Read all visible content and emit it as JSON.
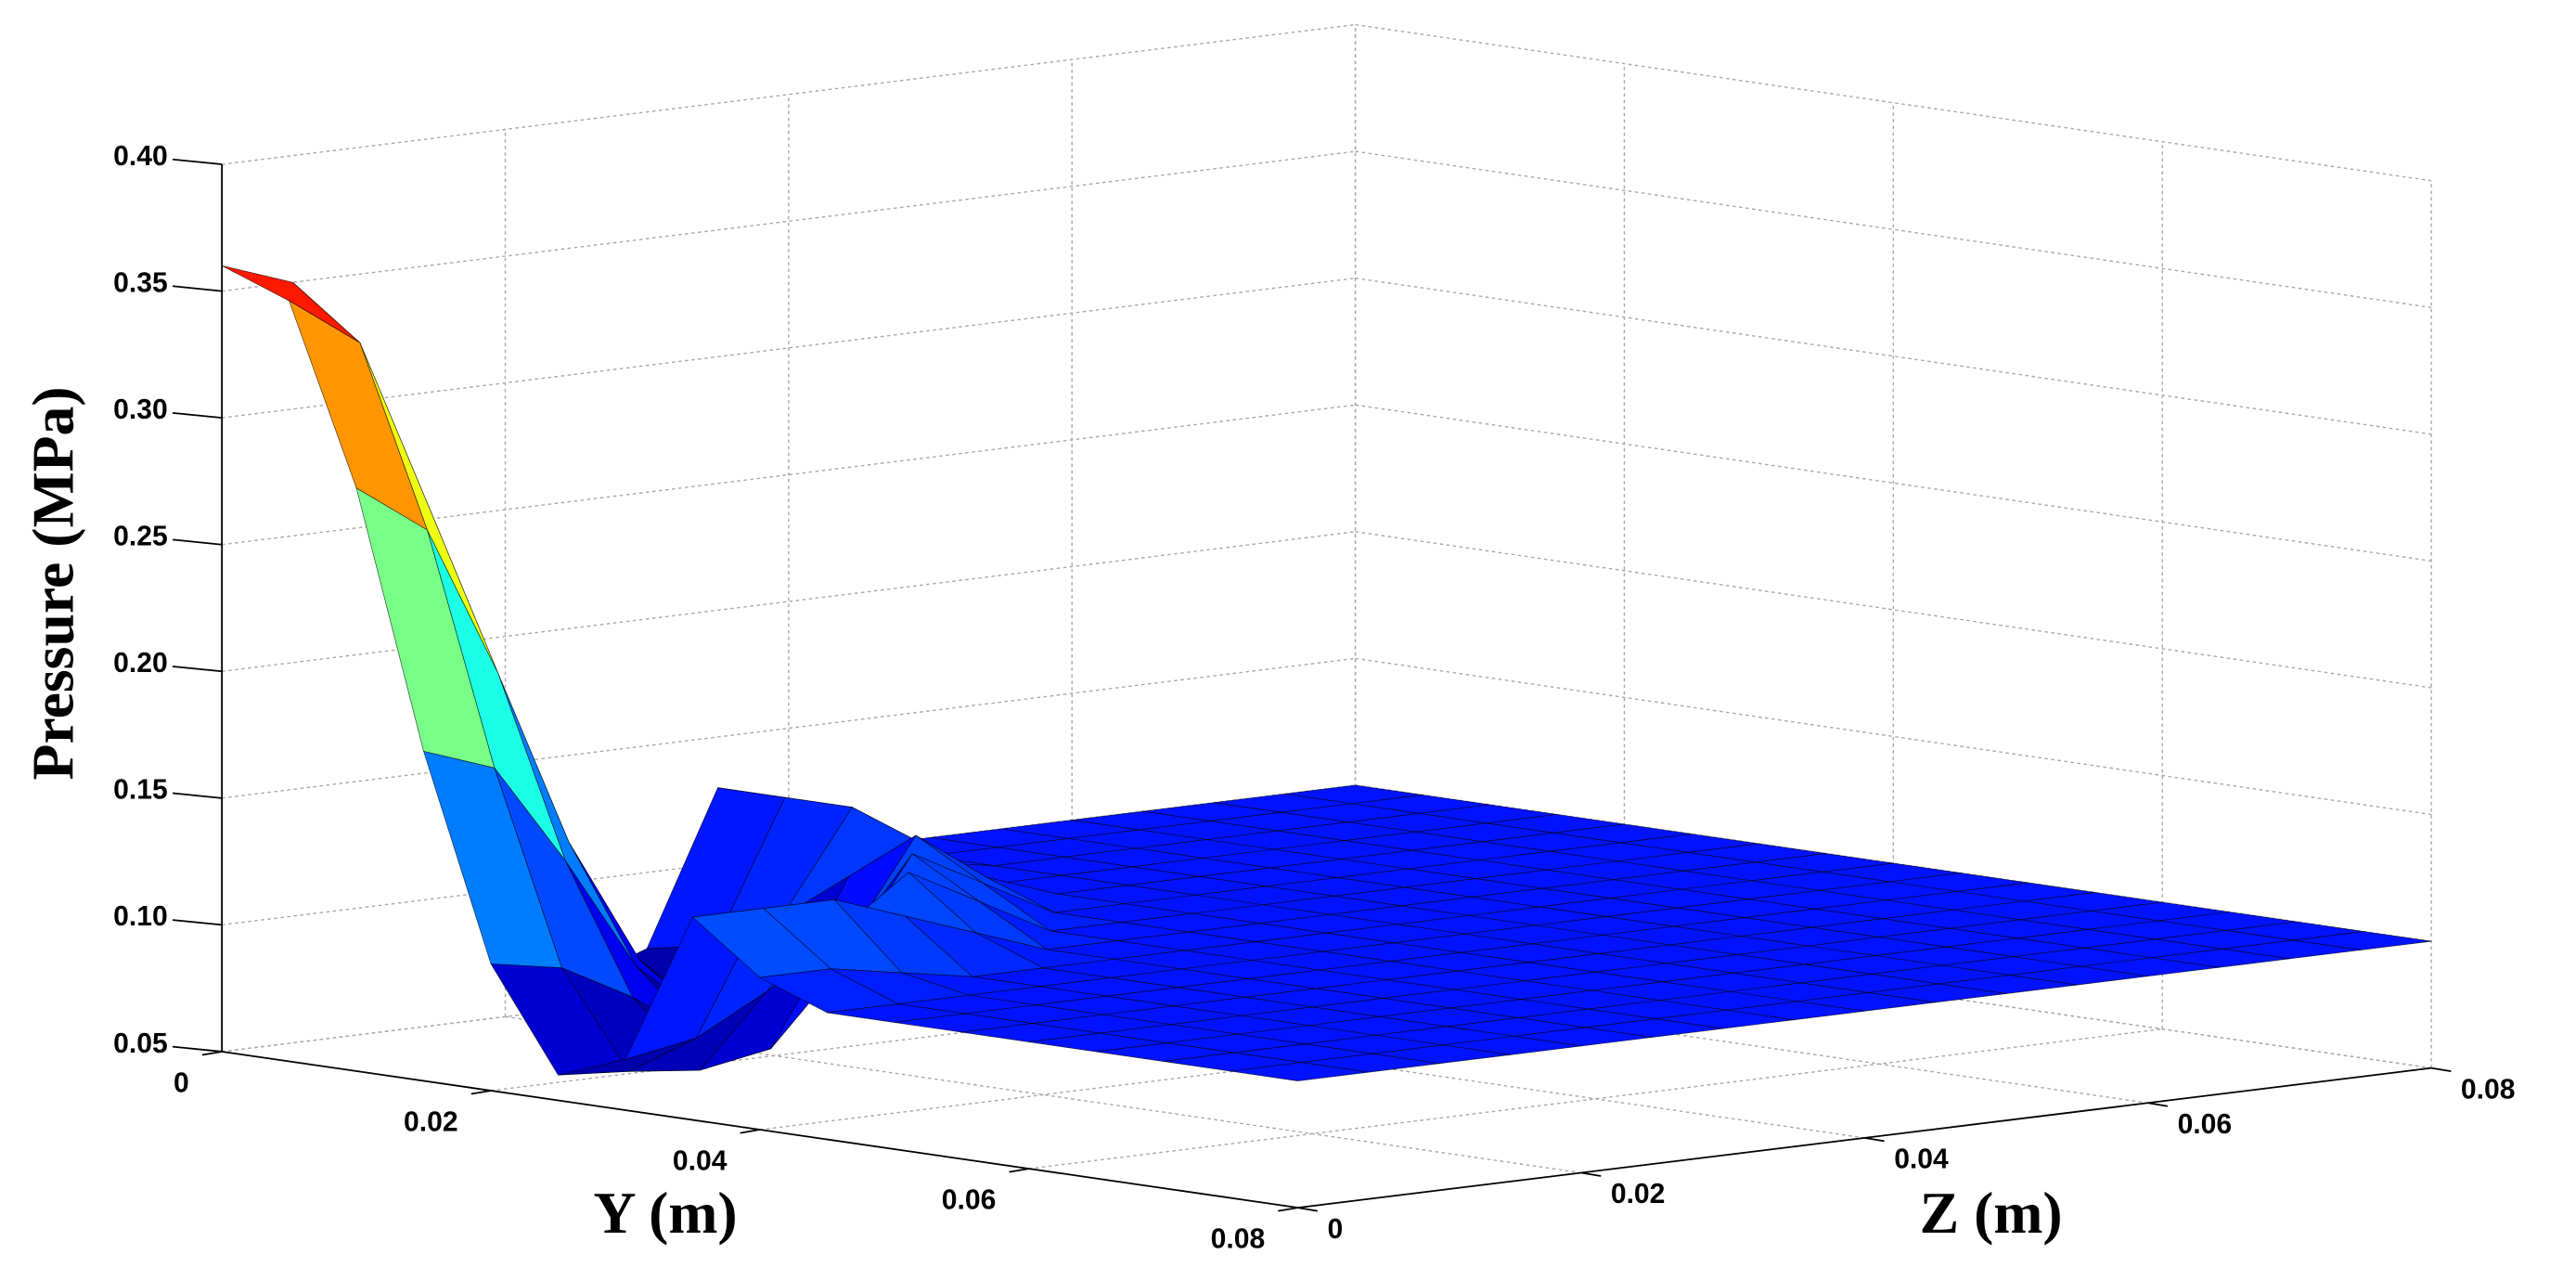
{
  "chart_data": {
    "type": "surface",
    "ylabel": "Y (m)",
    "zlabel": "Z (m)",
    "vlabel": "Pressure (MPa)",
    "colormap": "jet",
    "grid": true,
    "ylim": [
      0,
      0.08
    ],
    "yticks": [
      0,
      0.02,
      0.04,
      0.06,
      0.08
    ],
    "zlim": [
      0,
      0.08
    ],
    "zticks": [
      0,
      0.02,
      0.04,
      0.06,
      0.08
    ],
    "vlim": [
      0.05,
      0.4
    ],
    "vticks": [
      0.05,
      {
        "value": 0.1,
        "label": "0.10"
      },
      0.15,
      {
        "value": 0.2,
        "label": "0.20"
      },
      0.25,
      {
        "value": 0.3,
        "label": "0.30"
      },
      0.35,
      {
        "value": 0.4,
        "label": "0.40"
      }
    ],
    "y": [
      0,
      0.005,
      0.01,
      0.015,
      0.02,
      0.025,
      0.03,
      0.035,
      0.04,
      0.045,
      0.05,
      0.055,
      0.06,
      0.065,
      0.07,
      0.075,
      0.08
    ],
    "z": [
      0,
      0.005,
      0.01,
      0.015,
      0.02,
      0.025,
      0.03,
      0.035,
      0.04,
      0.045,
      0.05,
      0.055,
      0.06,
      0.065,
      0.07,
      0.075,
      0.08
    ],
    "values": [
      [
        0.36,
        0.35,
        0.28,
        0.18,
        0.1,
        0.06,
        0.07,
        0.13,
        0.11,
        0.1,
        0.1,
        0.1,
        0.1,
        0.1,
        0.1,
        0.1,
        0.1
      ],
      [
        0.35,
        0.33,
        0.26,
        0.17,
        0.095,
        0.058,
        0.075,
        0.13,
        0.11,
        0.1,
        0.1,
        0.1,
        0.1,
        0.1,
        0.1,
        0.1,
        0.1
      ],
      [
        0.28,
        0.26,
        0.2,
        0.13,
        0.08,
        0.055,
        0.09,
        0.13,
        0.105,
        0.1,
        0.1,
        0.1,
        0.1,
        0.1,
        0.1,
        0.1,
        0.1
      ],
      [
        0.18,
        0.17,
        0.13,
        0.085,
        0.06,
        0.06,
        0.11,
        0.12,
        0.1,
        0.1,
        0.1,
        0.1,
        0.1,
        0.1,
        0.1,
        0.1,
        0.1
      ],
      [
        0.1,
        0.095,
        0.08,
        0.06,
        0.055,
        0.09,
        0.13,
        0.11,
        0.1,
        0.1,
        0.1,
        0.1,
        0.1,
        0.1,
        0.1,
        0.1,
        0.1
      ],
      [
        0.06,
        0.058,
        0.055,
        0.06,
        0.09,
        0.13,
        0.115,
        0.1,
        0.1,
        0.1,
        0.1,
        0.1,
        0.1,
        0.1,
        0.1,
        0.1,
        0.1
      ],
      [
        0.07,
        0.075,
        0.09,
        0.11,
        0.13,
        0.115,
        0.1,
        0.1,
        0.1,
        0.1,
        0.1,
        0.1,
        0.1,
        0.1,
        0.1,
        0.1,
        0.1
      ],
      [
        0.13,
        0.13,
        0.13,
        0.12,
        0.11,
        0.1,
        0.1,
        0.1,
        0.1,
        0.1,
        0.1,
        0.1,
        0.1,
        0.1,
        0.1,
        0.1,
        0.1
      ],
      [
        0.11,
        0.11,
        0.105,
        0.1,
        0.1,
        0.1,
        0.1,
        0.1,
        0.1,
        0.1,
        0.1,
        0.1,
        0.1,
        0.1,
        0.1,
        0.1,
        0.1
      ],
      [
        0.1,
        0.1,
        0.1,
        0.1,
        0.1,
        0.1,
        0.1,
        0.1,
        0.1,
        0.1,
        0.1,
        0.1,
        0.1,
        0.1,
        0.1,
        0.1,
        0.1
      ],
      [
        0.1,
        0.1,
        0.1,
        0.1,
        0.1,
        0.1,
        0.1,
        0.1,
        0.1,
        0.1,
        0.1,
        0.1,
        0.1,
        0.1,
        0.1,
        0.1,
        0.1
      ],
      [
        0.1,
        0.1,
        0.1,
        0.1,
        0.1,
        0.1,
        0.1,
        0.1,
        0.1,
        0.1,
        0.1,
        0.1,
        0.1,
        0.1,
        0.1,
        0.1,
        0.1
      ],
      [
        0.1,
        0.1,
        0.1,
        0.1,
        0.1,
        0.1,
        0.1,
        0.1,
        0.1,
        0.1,
        0.1,
        0.1,
        0.1,
        0.1,
        0.1,
        0.1,
        0.1
      ],
      [
        0.1,
        0.1,
        0.1,
        0.1,
        0.1,
        0.1,
        0.1,
        0.1,
        0.1,
        0.1,
        0.1,
        0.1,
        0.1,
        0.1,
        0.1,
        0.1,
        0.1
      ],
      [
        0.1,
        0.1,
        0.1,
        0.1,
        0.1,
        0.1,
        0.1,
        0.1,
        0.1,
        0.1,
        0.1,
        0.1,
        0.1,
        0.1,
        0.1,
        0.1,
        0.1
      ],
      [
        0.1,
        0.1,
        0.1,
        0.1,
        0.1,
        0.1,
        0.1,
        0.1,
        0.1,
        0.1,
        0.1,
        0.1,
        0.1,
        0.1,
        0.1,
        0.1,
        0.1
      ],
      [
        0.1,
        0.1,
        0.1,
        0.1,
        0.1,
        0.1,
        0.1,
        0.1,
        0.1,
        0.1,
        0.1,
        0.1,
        0.1,
        0.1,
        0.1,
        0.1,
        0.1
      ]
    ]
  }
}
